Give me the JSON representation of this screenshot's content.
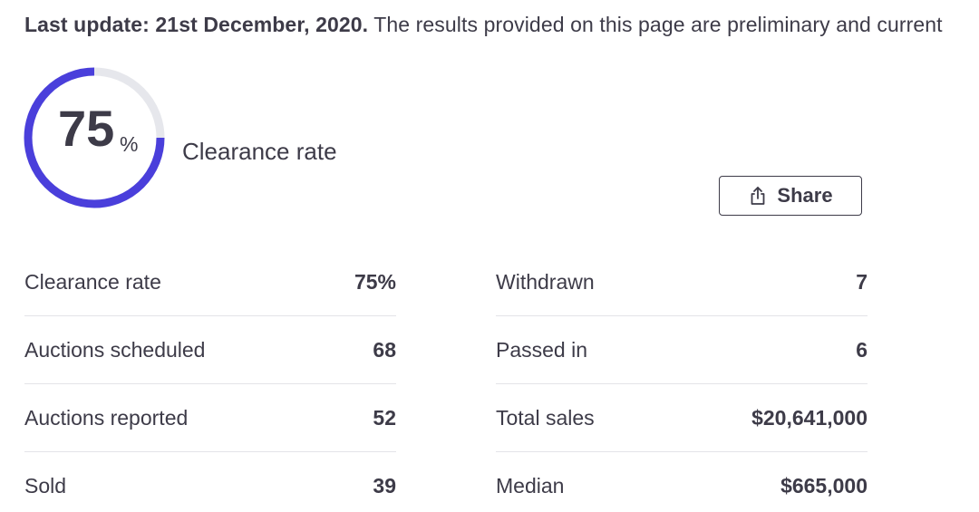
{
  "header": {
    "update_bold": "Last update: 21st December, 2020.",
    "update_rest": " The results provided on this page are preliminary and current"
  },
  "gauge": {
    "value": "75",
    "unit": "%",
    "label": "Clearance rate",
    "fraction": 0.75,
    "track_color": "#e6e7ec",
    "fill_color": "#4a3fdb"
  },
  "share": {
    "label": "Share",
    "icon": "share-upload-icon"
  },
  "stats": {
    "left": [
      {
        "label": "Clearance rate",
        "value": "75%"
      },
      {
        "label": "Auctions scheduled",
        "value": "68"
      },
      {
        "label": "Auctions reported",
        "value": "52"
      },
      {
        "label": "Sold",
        "value": "39"
      }
    ],
    "right": [
      {
        "label": "Withdrawn",
        "value": "7"
      },
      {
        "label": "Passed in",
        "value": "6"
      },
      {
        "label": "Total sales",
        "value": "$20,641,000"
      },
      {
        "label": "Median",
        "value": "$665,000"
      }
    ]
  }
}
